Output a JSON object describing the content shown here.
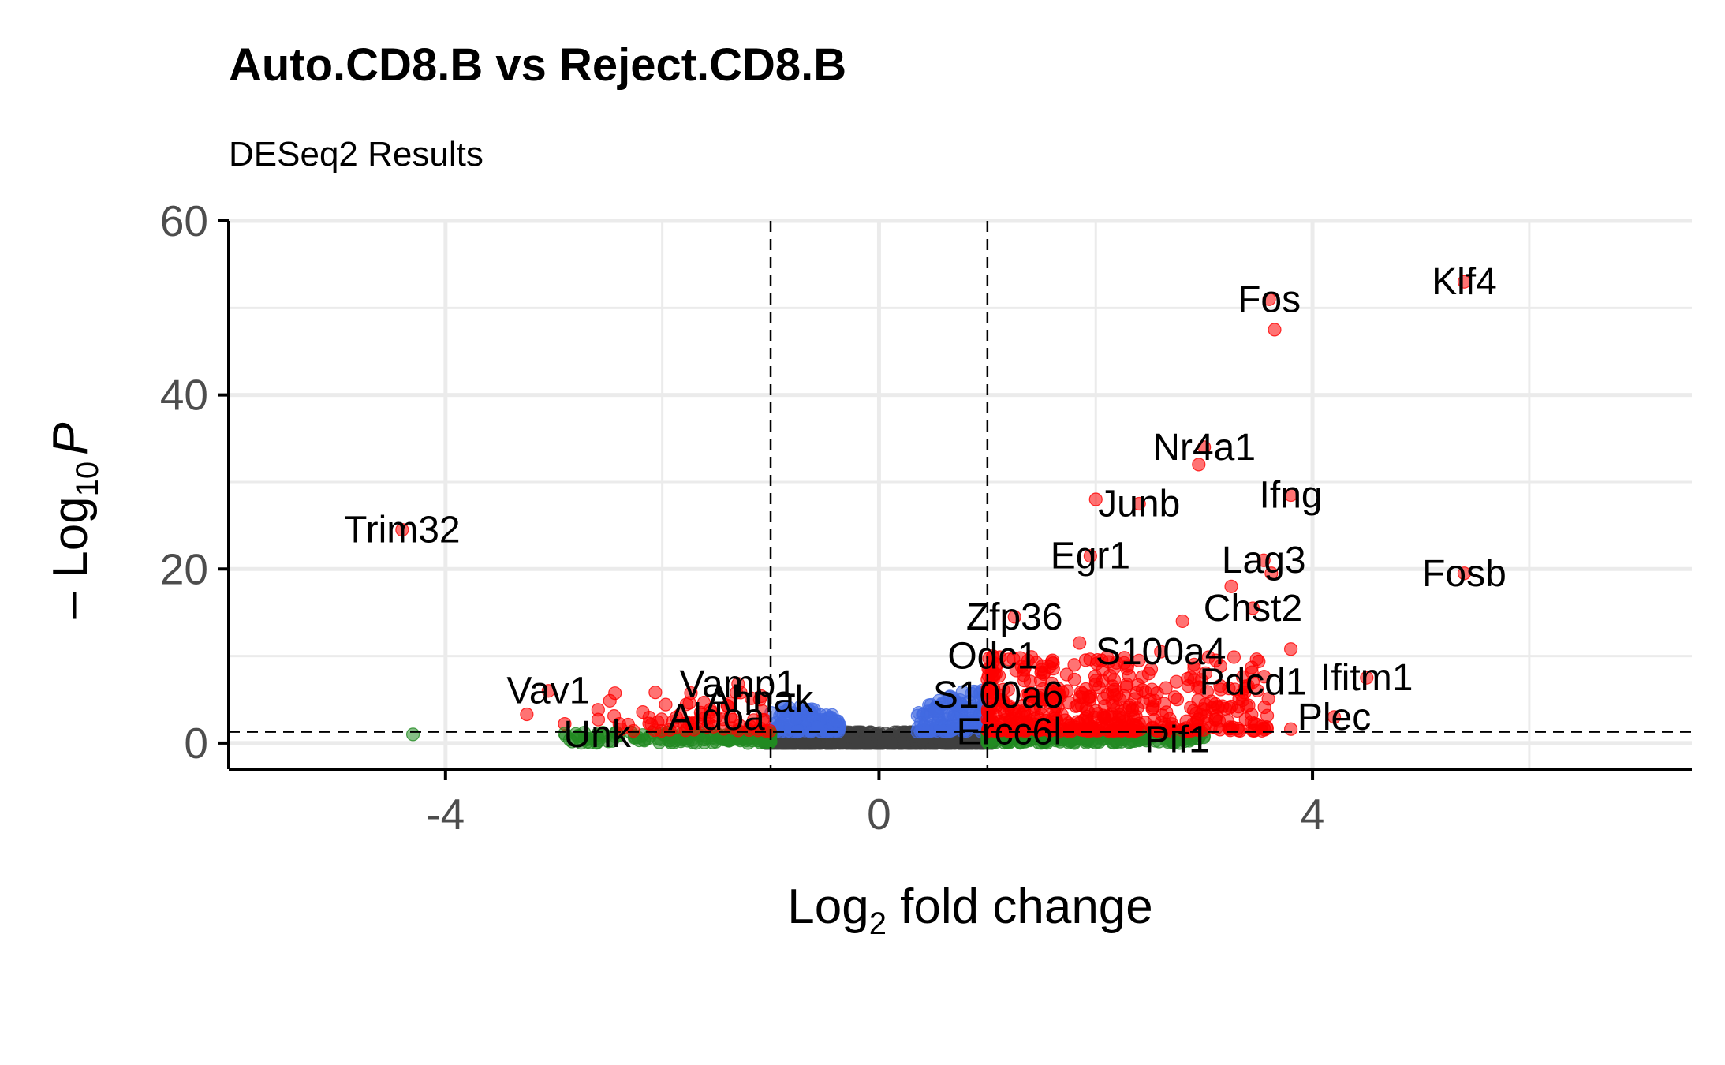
{
  "chart_data": {
    "type": "scatter",
    "title": "Auto.CD8.B vs Reject.CD8.B",
    "subtitle": "DESeq2 Results",
    "xlabel": {
      "main": "Log",
      "sub": "2",
      "rest": " fold change"
    },
    "ylabel": {
      "main": "– Log",
      "sub": "10",
      "italic": "P"
    },
    "xlim": [
      -6.0,
      7.5
    ],
    "ylim": [
      -3,
      60
    ],
    "x_ticks": [
      -4,
      0,
      4
    ],
    "x_tick_labels": [
      "-4",
      "0",
      "4"
    ],
    "y_ticks": [
      0,
      20,
      40,
      60
    ],
    "y_tick_labels": [
      "0",
      "20",
      "40",
      "60"
    ],
    "fc_cutoffs": [
      -1,
      1
    ],
    "p_cutoff": 1.3,
    "grid": true,
    "legend": "none",
    "colors": {
      "up_down": "#ff0000",
      "significant_only": "#4169e1",
      "fc_only": "#228b22",
      "ns": "#404040"
    },
    "highlighted_points": [
      {
        "label": "Klf4",
        "x": 5.4,
        "y": 53.0
      },
      {
        "label": "Fos",
        "x": 3.6,
        "y": 51.0
      },
      {
        "label": "",
        "x": 3.65,
        "y": 47.5
      },
      {
        "label": "Nr4a1",
        "x": 3.0,
        "y": 34.0
      },
      {
        "label": "",
        "x": 2.95,
        "y": 32.0
      },
      {
        "label": "Ifng",
        "x": 3.8,
        "y": 28.5
      },
      {
        "label": "Junb",
        "x": 2.4,
        "y": 27.5
      },
      {
        "label": "",
        "x": 2.0,
        "y": 28.0
      },
      {
        "label": "Trim32",
        "x": -4.4,
        "y": 24.5
      },
      {
        "label": "Egr1",
        "x": 1.95,
        "y": 21.5
      },
      {
        "label": "Lag3",
        "x": 3.55,
        "y": 21.0
      },
      {
        "label": "",
        "x": 3.62,
        "y": 19.5
      },
      {
        "label": "Fosb",
        "x": 5.4,
        "y": 19.5
      },
      {
        "label": "",
        "x": 3.25,
        "y": 18.0
      },
      {
        "label": "Chst2",
        "x": 3.45,
        "y": 15.5
      },
      {
        "label": "Zfp36",
        "x": 1.25,
        "y": 14.5
      },
      {
        "label": "",
        "x": 2.8,
        "y": 14.0
      },
      {
        "label": "",
        "x": 1.85,
        "y": 11.5
      },
      {
        "label": "S100a4",
        "x": 2.6,
        "y": 10.5
      },
      {
        "label": "",
        "x": 3.8,
        "y": 10.8
      },
      {
        "label": "Odc1",
        "x": 1.05,
        "y": 10.0
      },
      {
        "label": "",
        "x": 1.6,
        "y": 9.5
      },
      {
        "label": "Ifitm1",
        "x": 4.5,
        "y": 7.5
      },
      {
        "label": "Pdcd1",
        "x": 3.45,
        "y": 7.0
      },
      {
        "label": "Vamp1",
        "x": -1.3,
        "y": 6.8
      },
      {
        "label": "Vav1",
        "x": -3.05,
        "y": 6.0
      },
      {
        "label": "S100a6",
        "x": 1.1,
        "y": 5.5
      },
      {
        "label": "Ahnak",
        "x": -1.1,
        "y": 5.0
      },
      {
        "label": "",
        "x": -3.25,
        "y": 3.3
      },
      {
        "label": "Aldoa",
        "x": -1.5,
        "y": 3.0
      },
      {
        "label": "Plec",
        "x": 4.2,
        "y": 3.0
      },
      {
        "label": "",
        "x": -2.9,
        "y": 2.2
      },
      {
        "label": "Ercc6l",
        "x": 1.2,
        "y": 1.3
      },
      {
        "label": "",
        "x": 3.8,
        "y": 1.6
      },
      {
        "label": "Pif1",
        "x": 2.75,
        "y": 0.4
      },
      {
        "label": "Unk",
        "x": -2.6,
        "y": 1.0
      },
      {
        "label": "",
        "x": -4.3,
        "y": 1.0
      },
      {
        "label": "",
        "x": -2.9,
        "y": 1.1
      }
    ]
  }
}
